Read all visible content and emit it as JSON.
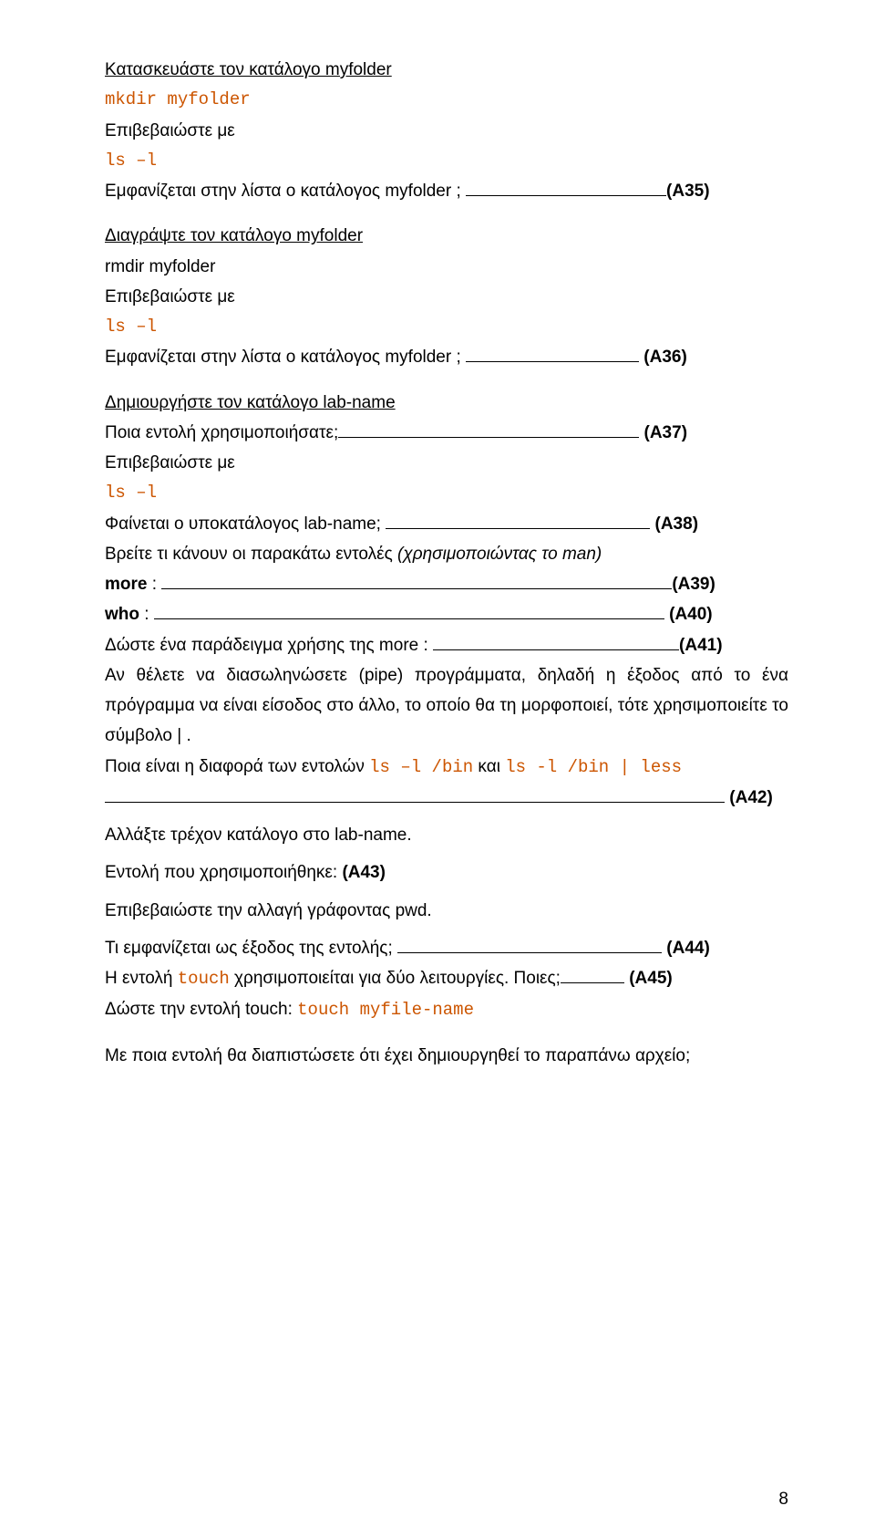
{
  "doc": {
    "line01": "Κατασκευάστε τον κατάλογο myfolder",
    "code01": "mkdir myfolder",
    "line02": "Επιβεβαιώστε με",
    "code02": "ls –l",
    "line03a": "Εμφανίζεται στην λίστα ο κατάλογος myfolder ; ",
    "a35": "(A35)",
    "line04": "Διαγράψτε τον κατάλογο myfolder",
    "line05": "rmdir myfolder",
    "line06": "Επιβεβαιώστε με",
    "code03": "ls –l",
    "line07a": "Εμφανίζεται στην λίστα ο κατάλογος myfolder ; ",
    "a36": " (A36)",
    "line08": "Δημιουργήστε τον κατάλογο lab-name",
    "line09a": "Ποια εντολή χρησιμοποιήσατε;",
    "a37": " (A37)",
    "line10": "Επιβεβαιώστε με",
    "code04": "ls –l",
    "line11a": "Φαίνεται ο υποκατάλογος lab-name; ",
    "a38": " (A38)",
    "line12a": "Βρείτε τι κάνουν οι παρακάτω εντολές ",
    "line12b": "(χρησιμοποιώντας το man)",
    "line13a": "more",
    "line13b": " : ",
    "a39": "(A39)",
    "line14a": "who",
    "line14b": " : ",
    "a40": " (A40)",
    "line15a": "Δώστε ένα παράδειγμα χρήσης της more : ",
    "a41": "(A41)",
    "line16": "Αν θέλετε να διασωληνώσετε (pipe) προγράμματα, δηλαδή η έξοδος από το ένα πρόγραμμα να είναι είσοδος στο άλλο, το οποίο θα τη μορφοποιεί, τότε χρησιμοποιείτε το σύμβολο | .",
    "line17a": "Ποια είναι η διαφορά των εντολών ",
    "code05": "ls –l /bin",
    "line17b": "  και ",
    "code06": "ls -l /bin | less",
    "a42": " (A42)",
    "line18": "Αλλάξτε τρέχον κατάλογο στο lab-name.",
    "line19a": "Eντολή που χρησιμοποιήθηκε: ",
    "a43": "(A43)",
    "line20": "Επιβεβαιώστε την αλλαγή γράφοντας pwd.",
    "line21a": "Τι εμφανίζεται ως έξοδος της εντολής; ",
    "a44": " (A44)",
    "line22a": "Η εντολή ",
    "code07": "touch",
    "line22b": " χρησιμοποιείται για δύο λειτουργίες. Ποιες;",
    "a45": " (A45)",
    "line23a": "Δώστε την εντολή touch: ",
    "code08": "touch myfile-name",
    "line24": "Με ποια εντολή θα διαπιστώσετε ότι έχει δημιουργηθεί το παραπάνω αρχείο;",
    "pagenum": "8"
  }
}
